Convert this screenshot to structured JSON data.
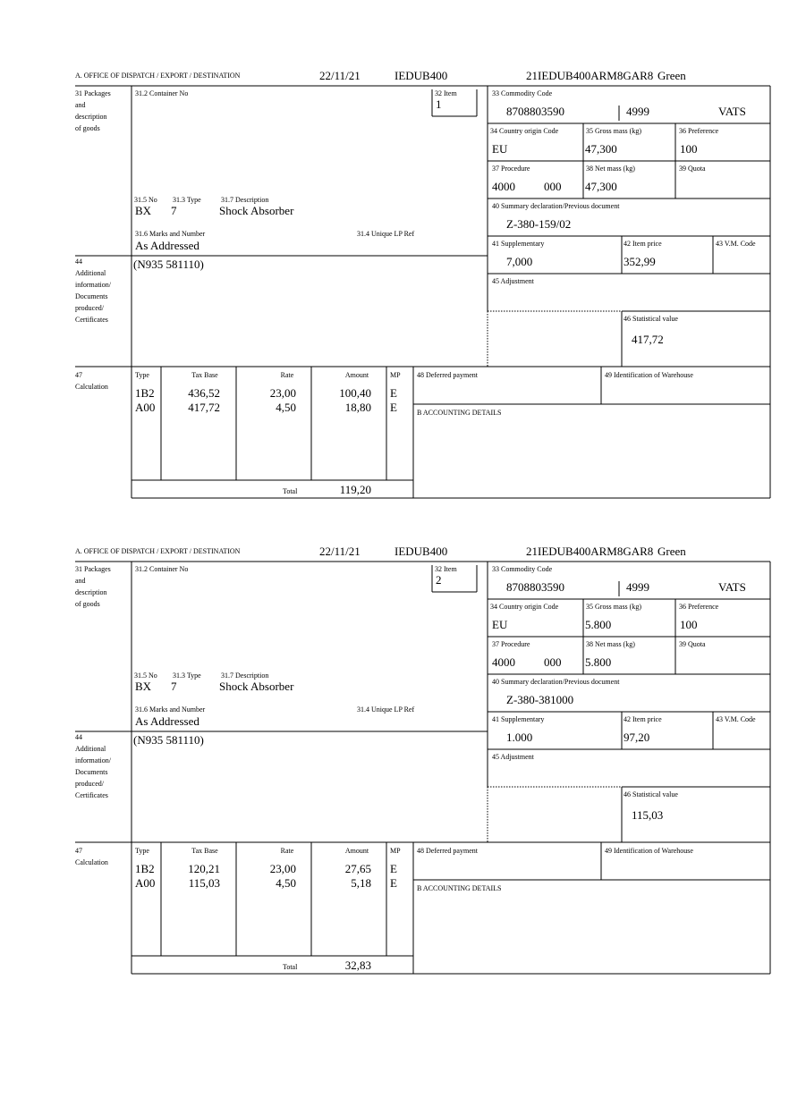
{
  "labels": {
    "office": "A. OFFICE OF DISPATCH / EXPORT / DESTINATION",
    "b31": [
      "31 Packages",
      "and",
      "description",
      "of goods"
    ],
    "b31_2": "31.2 Container No",
    "b32": "32 Item",
    "b33": "33 Commodity Code",
    "b34": "34 Country origin Code",
    "b35": "35 Gross mass (kg)",
    "b36": "36 Preference",
    "b37": "37 Procedure",
    "b38": "38 Net mass (kg)",
    "b39": "39 Quota",
    "b40": "40 Summary declaration/Previous document",
    "b41": "41 Supplementary",
    "b42": "42 Item price",
    "b43": "43 V.M. Code",
    "b45": "45 Adjustment",
    "b46": "46 Statistical value",
    "b31_5": "31.5 No",
    "b31_3": "31.3 Type",
    "b31_7": "31.7 Description",
    "b31_6": "31.6 Marks and Number",
    "b31_4": "31.4 Unique LP Ref",
    "b44": [
      "44",
      "Additional",
      "information/",
      "Documents",
      "produced/",
      "Certificates"
    ],
    "b47": [
      "47",
      "Calculation"
    ],
    "table_header": [
      "Type",
      "Tax Base",
      "Rate",
      "Amount",
      "MP"
    ],
    "b48": "48 Deferred payment",
    "b49": "49 Identification of Warehouse",
    "bB": "B ACCOUNTING DETAILS",
    "total": "Total"
  },
  "forms": [
    {
      "header": {
        "date": "22/11/21",
        "office_code": "IEDUB400",
        "reference": "21IEDUB400ARM8GAR8",
        "status": "Green"
      },
      "item": "1",
      "commodity_code": "8708803590",
      "commodity_extra": "4999",
      "commodity_vat": "VATS",
      "country_origin": "EU",
      "gross_mass": "47,300",
      "preference": "100",
      "procedure": "4000",
      "procedure_extra": "000",
      "net_mass": "47,300",
      "previous_document": "Z-380-159/02",
      "supplementary": "7,000",
      "item_price": "352,99",
      "statistical_value": "417,72",
      "additional_info": "(N935 581110)",
      "packages_no": "BX",
      "packages_type": "7",
      "description": "Shock Absorber",
      "marks": "As Addressed",
      "tax_rows": [
        [
          "1B2",
          "436,52",
          "23,00",
          "100,40",
          "E"
        ],
        [
          "A00",
          "417,72",
          "4,50",
          "18,80",
          "E"
        ]
      ],
      "total": "119,20"
    },
    {
      "header": {
        "date": "22/11/21",
        "office_code": "IEDUB400",
        "reference": "21IEDUB400ARM8GAR8",
        "status": "Green"
      },
      "item": "2",
      "commodity_code": "8708803590",
      "commodity_extra": "4999",
      "commodity_vat": "VATS",
      "country_origin": "EU",
      "gross_mass": "5.800",
      "preference": "100",
      "procedure": "4000",
      "procedure_extra": "000",
      "net_mass": "5.800",
      "previous_document": "Z-380-381000",
      "supplementary": "1.000",
      "item_price": "97,20",
      "statistical_value": "115,03",
      "additional_info": "(N935 581110)",
      "packages_no": "BX",
      "packages_type": "7",
      "description": "Shock Absorber",
      "marks": "As Addressed",
      "tax_rows": [
        [
          "1B2",
          "120,21",
          "23,00",
          "27,65",
          "E"
        ],
        [
          "A00",
          "115,03",
          "4,50",
          "5,18",
          "E"
        ]
      ],
      "total": "32,83"
    }
  ]
}
